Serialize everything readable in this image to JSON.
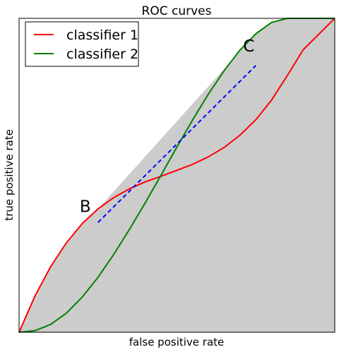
{
  "chart_data": {
    "type": "line",
    "title": "ROC curves",
    "xlabel": "false positive rate",
    "ylabel": "true positive rate",
    "xlim": [
      0,
      1
    ],
    "ylim": [
      0,
      1
    ],
    "xticks": [],
    "yticks": [],
    "grid": false,
    "legend_position": "top-left",
    "shaded_region": {
      "description_color": "#cccccc"
    },
    "series": [
      {
        "name": "classifier 1",
        "color": "#ff0000",
        "x": [
          0.0,
          0.05,
          0.1,
          0.15,
          0.2,
          0.25,
          0.3,
          0.35,
          0.4,
          0.45,
          0.5,
          0.55,
          0.6,
          0.65,
          0.7,
          0.75,
          0.8,
          0.85,
          0.9,
          0.95,
          1.0
        ],
        "y": [
          0.0,
          0.115,
          0.209,
          0.285,
          0.346,
          0.393,
          0.429,
          0.457,
          0.479,
          0.497,
          0.516,
          0.535,
          0.559,
          0.589,
          0.628,
          0.677,
          0.74,
          0.818,
          0.9,
          0.95,
          1.0
        ]
      },
      {
        "name": "classifier 2",
        "color": "#008000",
        "x": [
          0.0,
          0.05,
          0.1,
          0.15,
          0.2,
          0.25,
          0.3,
          0.35,
          0.4,
          0.45,
          0.5,
          0.55,
          0.6,
          0.65,
          0.7,
          0.75,
          0.8,
          0.85,
          0.9,
          0.95,
          1.0
        ],
        "y": [
          0.0,
          0.005,
          0.025,
          0.061,
          0.112,
          0.175,
          0.248,
          0.328,
          0.413,
          0.501,
          0.59,
          0.677,
          0.759,
          0.834,
          0.899,
          0.951,
          0.987,
          1.0,
          1.0,
          1.0,
          1.0
        ]
      },
      {
        "name": "",
        "style": "dashed",
        "color": "#0000ff",
        "x": [
          0.25,
          0.75
        ],
        "y": [
          0.35,
          0.85
        ]
      }
    ],
    "annotations": [
      {
        "text": "B",
        "x": 0.25,
        "y": 0.35
      },
      {
        "text": "C",
        "x": 0.75,
        "y": 0.85
      }
    ]
  }
}
